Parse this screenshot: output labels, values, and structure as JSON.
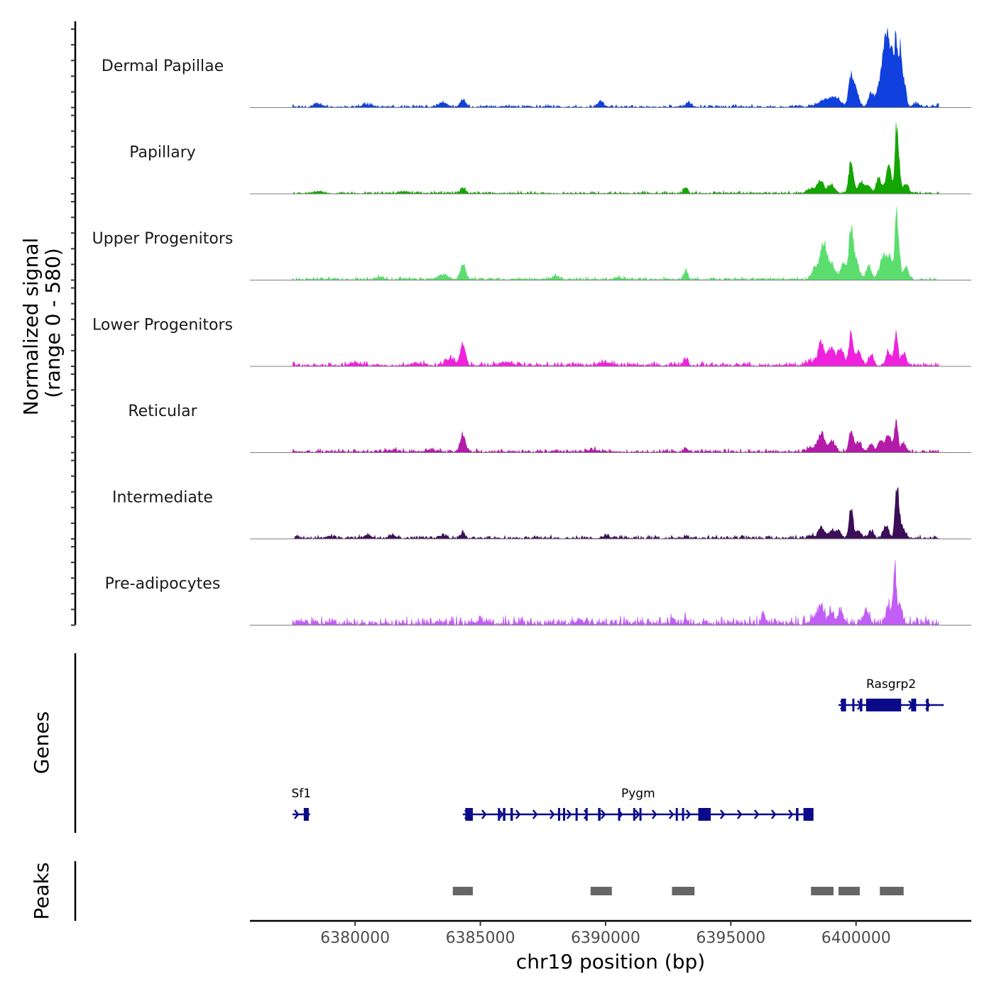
{
  "chart_data": {
    "type": "area",
    "title": "",
    "ylabel_line1": "Normalized signal",
    "ylabel_line2": "(range 0 - 580)",
    "y_range": [
      0,
      580
    ],
    "xlabel": "chr19 position (bp)",
    "x_range": [
      6375800,
      6404600
    ],
    "x_ticks": [
      6380000,
      6385000,
      6390000,
      6395000,
      6400000
    ],
    "x_tick_labels": [
      "6380000",
      "6385000",
      "6390000",
      "6395000",
      "6400000"
    ],
    "tracks": [
      {
        "name": "Dermal Papillae",
        "color": "#1040DD",
        "baseline": 12,
        "peaks": [
          [
            6378500,
            25,
            150
          ],
          [
            6380500,
            20,
            150
          ],
          [
            6383500,
            40,
            150
          ],
          [
            6384300,
            55,
            110
          ],
          [
            6389800,
            45,
            120
          ],
          [
            6393300,
            45,
            90
          ],
          [
            6398800,
            60,
            300
          ],
          [
            6399200,
            50,
            200
          ],
          [
            6399800,
            250,
            90
          ],
          [
            6400000,
            140,
            110
          ],
          [
            6400600,
            110,
            110
          ],
          [
            6401000,
            160,
            150
          ],
          [
            6401100,
            150,
            150
          ],
          [
            6401250,
            520,
            110
          ],
          [
            6401450,
            380,
            70
          ],
          [
            6401600,
            600,
            50
          ],
          [
            6401750,
            460,
            60
          ],
          [
            6401900,
            220,
            90
          ],
          [
            6402400,
            30,
            120
          ],
          [
            6403300,
            30,
            60
          ]
        ]
      },
      {
        "name": "Papillary",
        "color": "#13A600",
        "baseline": 10,
        "peaks": [
          [
            6378500,
            15,
            150
          ],
          [
            6382000,
            15,
            150
          ],
          [
            6384300,
            45,
            100
          ],
          [
            6393200,
            45,
            90
          ],
          [
            6398300,
            50,
            200
          ],
          [
            6398600,
            90,
            110
          ],
          [
            6399000,
            70,
            140
          ],
          [
            6399800,
            280,
            90
          ],
          [
            6400200,
            100,
            110
          ],
          [
            6400500,
            60,
            100
          ],
          [
            6400900,
            120,
            110
          ],
          [
            6401300,
            240,
            110
          ],
          [
            6401600,
            480,
            50
          ],
          [
            6401700,
            260,
            70
          ],
          [
            6402000,
            80,
            100
          ]
        ]
      },
      {
        "name": "Upper Progenitors",
        "color": "#5BDE6E",
        "baseline": 12,
        "peaks": [
          [
            6381000,
            20,
            150
          ],
          [
            6383500,
            40,
            200
          ],
          [
            6384300,
            140,
            100
          ],
          [
            6388000,
            30,
            150
          ],
          [
            6390500,
            20,
            150
          ],
          [
            6393200,
            75,
            80
          ],
          [
            6398400,
            110,
            150
          ],
          [
            6398700,
            300,
            110
          ],
          [
            6399000,
            130,
            160
          ],
          [
            6399500,
            150,
            110
          ],
          [
            6399800,
            420,
            80
          ],
          [
            6400000,
            160,
            120
          ],
          [
            6400500,
            120,
            100
          ],
          [
            6401100,
            200,
            150
          ],
          [
            6401400,
            150,
            110
          ],
          [
            6401600,
            470,
            50
          ],
          [
            6401700,
            260,
            70
          ],
          [
            6402000,
            100,
            100
          ]
        ]
      },
      {
        "name": "Lower Progenitors",
        "color": "#EE22DD",
        "baseline": 18,
        "peaks": [
          [
            6380000,
            25,
            200
          ],
          [
            6382500,
            20,
            200
          ],
          [
            6383800,
            50,
            200
          ],
          [
            6384300,
            200,
            100
          ],
          [
            6386000,
            25,
            200
          ],
          [
            6390000,
            25,
            200
          ],
          [
            6393200,
            65,
            80
          ],
          [
            6398200,
            40,
            150
          ],
          [
            6398600,
            190,
            120
          ],
          [
            6399000,
            150,
            140
          ],
          [
            6399400,
            140,
            120
          ],
          [
            6399800,
            260,
            80
          ],
          [
            6400100,
            120,
            110
          ],
          [
            6400600,
            90,
            100
          ],
          [
            6401300,
            120,
            110
          ],
          [
            6401600,
            260,
            70
          ],
          [
            6401900,
            90,
            100
          ]
        ]
      },
      {
        "name": "Reticular",
        "color": "#B31CA8",
        "baseline": 15,
        "peaks": [
          [
            6381500,
            15,
            200
          ],
          [
            6383000,
            20,
            200
          ],
          [
            6384300,
            160,
            100
          ],
          [
            6389500,
            20,
            200
          ],
          [
            6393200,
            35,
            80
          ],
          [
            6398200,
            40,
            150
          ],
          [
            6398600,
            150,
            120
          ],
          [
            6399000,
            90,
            150
          ],
          [
            6399800,
            180,
            80
          ],
          [
            6400100,
            90,
            110
          ],
          [
            6400600,
            60,
            100
          ],
          [
            6401000,
            90,
            120
          ],
          [
            6401300,
            130,
            110
          ],
          [
            6401600,
            270,
            70
          ],
          [
            6401900,
            70,
            100
          ]
        ]
      },
      {
        "name": "Intermediate",
        "color": "#3B0E57",
        "baseline": 14,
        "peaks": [
          [
            6379000,
            15,
            200
          ],
          [
            6380500,
            30,
            150
          ],
          [
            6381500,
            25,
            150
          ],
          [
            6383500,
            25,
            150
          ],
          [
            6384300,
            55,
            80
          ],
          [
            6390000,
            20,
            150
          ],
          [
            6393200,
            18,
            80
          ],
          [
            6398200,
            20,
            150
          ],
          [
            6398600,
            90,
            110
          ],
          [
            6399000,
            60,
            150
          ],
          [
            6399300,
            55,
            110
          ],
          [
            6399800,
            260,
            80
          ],
          [
            6400100,
            60,
            110
          ],
          [
            6400600,
            60,
            100
          ],
          [
            6401200,
            110,
            110
          ],
          [
            6401600,
            330,
            60
          ],
          [
            6401700,
            230,
            70
          ],
          [
            6401900,
            70,
            100
          ]
        ]
      },
      {
        "name": "Pre-adipocytes",
        "color": "#C05EF5",
        "baseline": 35,
        "peaks": [
          [
            6377800,
            25,
            100
          ],
          [
            6379000,
            15,
            150
          ],
          [
            6385000,
            20,
            150
          ],
          [
            6389000,
            25,
            150
          ],
          [
            6392700,
            40,
            80
          ],
          [
            6393200,
            50,
            60
          ],
          [
            6396300,
            100,
            60
          ],
          [
            6398300,
            40,
            150
          ],
          [
            6398600,
            150,
            100
          ],
          [
            6399000,
            100,
            120
          ],
          [
            6399400,
            80,
            110
          ],
          [
            6400400,
            90,
            120
          ],
          [
            6401300,
            150,
            100
          ],
          [
            6401550,
            490,
            60
          ],
          [
            6401750,
            170,
            80
          ]
        ]
      }
    ],
    "genes": [
      {
        "name": "Sf1",
        "start": 6377500,
        "end": 6378200,
        "strand": "+",
        "row": 2,
        "exons": [
          [
            6377950,
            6378150
          ]
        ]
      },
      {
        "name": "Pygm",
        "start": 6384300,
        "end": 6398300,
        "strand": "+",
        "row": 2,
        "exons": [
          [
            6384400,
            6384700
          ],
          [
            6385700,
            6385780
          ],
          [
            6385900,
            6386000
          ],
          [
            6386200,
            6386300
          ],
          [
            6388100,
            6388180
          ],
          [
            6388300,
            6388380
          ],
          [
            6388800,
            6388880
          ],
          [
            6389200,
            6389270
          ],
          [
            6389700,
            6389800
          ],
          [
            6390500,
            6390580
          ],
          [
            6391100,
            6391180
          ],
          [
            6391350,
            6391430
          ],
          [
            6392800,
            6392880
          ],
          [
            6393050,
            6393130
          ],
          [
            6393700,
            6394200
          ],
          [
            6397600,
            6397700
          ],
          [
            6397900,
            6398300
          ]
        ]
      },
      {
        "name": "Rasgrp2",
        "start": 6399300,
        "end": 6403500,
        "strand": "+",
        "row": 1,
        "exons": [
          [
            6399400,
            6399600
          ],
          [
            6399850,
            6399930
          ],
          [
            6400150,
            6400250
          ],
          [
            6400400,
            6401800
          ],
          [
            6402200,
            6402400
          ],
          [
            6402800,
            6402900
          ]
        ]
      }
    ],
    "peaks_track": [
      [
        6383900,
        6384700
      ],
      [
        6389400,
        6390250
      ],
      [
        6392650,
        6393550
      ],
      [
        6398200,
        6399100
      ],
      [
        6399300,
        6400150
      ],
      [
        6400950,
        6401900
      ]
    ],
    "y_panels": [
      "Genes",
      "Peaks"
    ]
  }
}
